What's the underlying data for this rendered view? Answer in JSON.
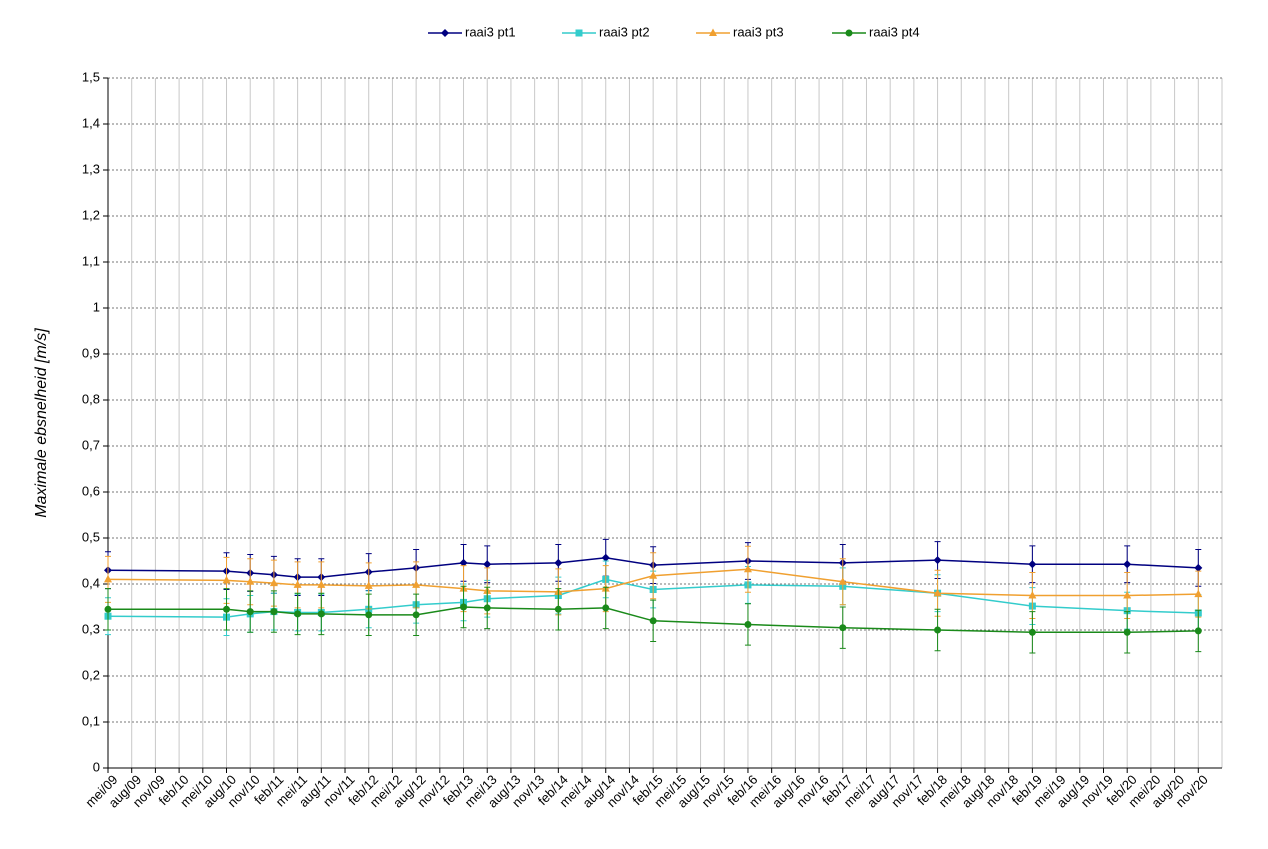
{
  "chart_data": {
    "type": "line",
    "ylabel": "Maximale ebsnelheid [m/s]",
    "categories": [
      "mei/09",
      "aug/09",
      "nov/09",
      "feb/10",
      "mei/10",
      "aug/10",
      "nov/10",
      "feb/11",
      "mei/11",
      "aug/11",
      "nov/11",
      "feb/12",
      "mei/12",
      "aug/12",
      "nov/12",
      "feb/13",
      "mei/13",
      "aug/13",
      "nov/13",
      "feb/14",
      "mei/14",
      "aug/14",
      "nov/14",
      "feb/15",
      "mei/15",
      "aug/15",
      "nov/15",
      "feb/16",
      "mei/16",
      "aug/16",
      "nov/16",
      "feb/17",
      "mei/17",
      "aug/17",
      "nov/17",
      "feb/18",
      "mei/18",
      "aug/18",
      "nov/18",
      "feb/19",
      "mei/19",
      "aug/19",
      "nov/19",
      "feb/20",
      "mei/20",
      "aug/20",
      "nov/20"
    ],
    "x": [
      "mei/09",
      "aug/10",
      "nov/10",
      "feb/11",
      "mei/11",
      "aug/11",
      "feb/12",
      "aug/12",
      "feb/13",
      "mei/13",
      "feb/14",
      "aug/14",
      "feb/15",
      "feb/16",
      "feb/17",
      "feb/18",
      "feb/19",
      "feb/20",
      "nov/20"
    ],
    "series": [
      {
        "name": "raai3 pt1",
        "color": "#000080",
        "marker": "diamond",
        "error": 0.04,
        "values": [
          0.43,
          0.428,
          0.424,
          0.42,
          0.415,
          0.415,
          0.426,
          0.435,
          0.446,
          0.443,
          0.446,
          0.457,
          0.441,
          0.45,
          0.446,
          0.452,
          0.443,
          0.443,
          0.435
        ]
      },
      {
        "name": "raai3 pt2",
        "color": "#33cccc",
        "marker": "square",
        "error": 0.04,
        "values": [
          0.33,
          0.328,
          0.335,
          0.34,
          0.338,
          0.338,
          0.345,
          0.355,
          0.36,
          0.368,
          0.375,
          0.41,
          0.388,
          0.398,
          0.395,
          0.38,
          0.352,
          0.342,
          0.337
        ]
      },
      {
        "name": "raai3 pt3",
        "color": "#f0a030",
        "marker": "triangle",
        "error": 0.05,
        "values": [
          0.41,
          0.408,
          0.405,
          0.402,
          0.398,
          0.398,
          0.396,
          0.398,
          0.39,
          0.385,
          0.383,
          0.39,
          0.418,
          0.432,
          0.405,
          0.38,
          0.375,
          0.375,
          0.378
        ]
      },
      {
        "name": "raai3 pt4",
        "color": "#1a8a1a",
        "marker": "circle",
        "error": 0.045,
        "values": [
          0.345,
          0.345,
          0.34,
          0.34,
          0.335,
          0.335,
          0.333,
          0.333,
          0.35,
          0.348,
          0.345,
          0.348,
          0.32,
          0.312,
          0.305,
          0.3,
          0.295,
          0.295,
          0.298
        ]
      }
    ],
    "ylim": [
      0,
      1.5
    ],
    "yticks": [
      0,
      {
        "value": 0.1,
        "label": "0,1"
      },
      {
        "value": 0.2,
        "label": "0,2"
      },
      {
        "value": 0.3,
        "label": "0,3"
      },
      {
        "value": 0.4,
        "label": "0,4"
      },
      {
        "value": 0.5,
        "label": "0,5"
      },
      {
        "value": 0.6,
        "label": "0,6"
      },
      {
        "value": 0.7,
        "label": "0,7"
      },
      {
        "value": 0.8,
        "label": "0,8"
      },
      {
        "value": 0.9,
        "label": "0,9"
      },
      1,
      {
        "value": 1.1,
        "label": "1,1"
      },
      {
        "value": 1.2,
        "label": "1,2"
      },
      {
        "value": 1.3,
        "label": "1,3"
      },
      {
        "value": 1.4,
        "label": "1,4"
      },
      {
        "value": 1.5,
        "label": "1,5"
      }
    ],
    "grid": true,
    "legend": "top"
  }
}
